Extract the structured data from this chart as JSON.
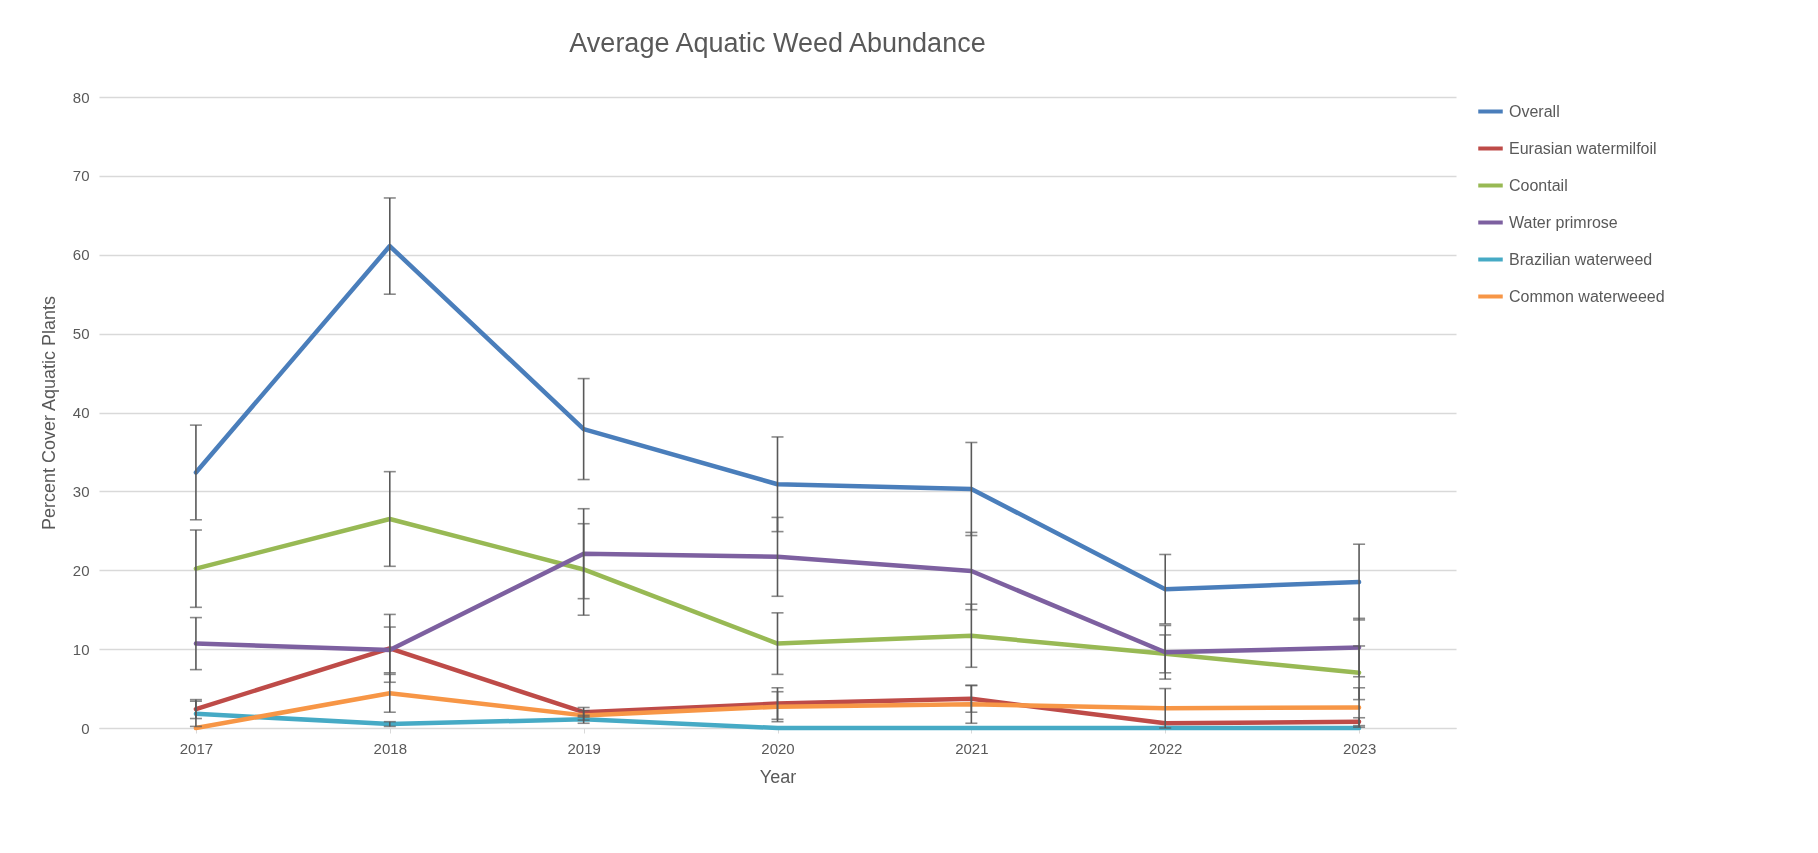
{
  "chart_data": {
    "type": "line",
    "title": "Average Aquatic Weed Abundance",
    "xlabel": "Year",
    "ylabel": "Percent Cover Aquatic Plants",
    "categories": [
      "2017",
      "2018",
      "2019",
      "2020",
      "2021",
      "2022",
      "2023"
    ],
    "ylim": [
      0,
      80
    ],
    "yticks": [
      0,
      10,
      20,
      30,
      40,
      50,
      60,
      70,
      80
    ],
    "grid": "y",
    "legend": "right",
    "series": [
      {
        "name": "Overall",
        "color": "#4a7ebb",
        "values": [
          32.4,
          61.1,
          37.9,
          30.9,
          30.3,
          17.6,
          18.5
        ],
        "errors": [
          6.0,
          6.1,
          6.4,
          6.0,
          5.9,
          4.4,
          4.8
        ]
      },
      {
        "name": "Eurasian watermilfoil",
        "color": "#be4b48",
        "values": [
          2.4,
          10.1,
          2.0,
          3.1,
          3.7,
          0.6,
          0.8
        ],
        "errors": [
          1.2,
          4.3,
          0.6,
          2.0,
          1.7,
          null,
          0.5
        ]
      },
      {
        "name": "Coontail",
        "color": "#98b954",
        "values": [
          20.2,
          26.5,
          20.1,
          10.7,
          11.7,
          9.4,
          7.0
        ],
        "errors": [
          4.9,
          6.0,
          5.8,
          3.9,
          4.0,
          2.4,
          3.4
        ]
      },
      {
        "name": "Water primrose",
        "color": "#7d60a0",
        "values": [
          10.7,
          9.9,
          22.1,
          21.7,
          19.9,
          9.6,
          10.2
        ],
        "errors": [
          3.3,
          2.9,
          5.7,
          5.0,
          4.9,
          3.4,
          3.7
        ]
      },
      {
        "name": "Brazilian waterweed",
        "color": "#46aac5",
        "values": [
          1.8,
          0.5,
          1.1,
          0,
          0,
          0,
          0
        ],
        "errors": [
          1.6,
          0.3,
          0.5,
          null,
          null,
          null,
          null
        ]
      },
      {
        "name": "Common waterweeed",
        "color": "#f79646",
        "values": [
          0,
          4.4,
          1.6,
          2.7,
          3.0,
          2.5,
          2.6
        ],
        "errors": [
          null,
          2.4,
          0.6,
          1.9,
          2.4,
          2.5,
          2.5
        ]
      }
    ]
  }
}
